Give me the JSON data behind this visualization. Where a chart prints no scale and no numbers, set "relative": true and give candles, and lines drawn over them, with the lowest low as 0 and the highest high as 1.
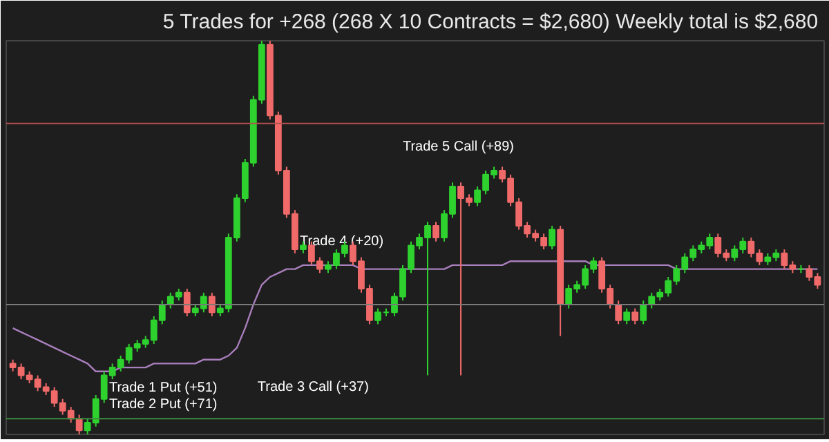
{
  "chart_data": {
    "type": "candlestick",
    "title": "5 Trades for +268 (268 X 10 Contracts = $2,680)  Weekly total is $2,680",
    "relative": true,
    "tick_labels": false,
    "grid": false,
    "categories": [
      null,
      null,
      null,
      null,
      null,
      null,
      null,
      null,
      null,
      null,
      null,
      null,
      null,
      null,
      null,
      null,
      null,
      null,
      null,
      null,
      null,
      null,
      null,
      null,
      null,
      null,
      null,
      null,
      null,
      null,
      null,
      null,
      null,
      null,
      null,
      null,
      null,
      null,
      null,
      null,
      null,
      null,
      null,
      null,
      null,
      null,
      null,
      null,
      null,
      null,
      null,
      null,
      null,
      null,
      null,
      null,
      null,
      null,
      null,
      null,
      null,
      null,
      null,
      null,
      null,
      null,
      null,
      null,
      null,
      null,
      null,
      null,
      null,
      null,
      null,
      null,
      null,
      null,
      null,
      null,
      null,
      null,
      null,
      null,
      null,
      null,
      null,
      null,
      null,
      null,
      null,
      null,
      null,
      null,
      null,
      null,
      null,
      null
    ],
    "ohlc": [
      [
        0.18,
        0.19,
        0.16,
        0.17
      ],
      [
        0.17,
        0.18,
        0.14,
        0.15
      ],
      [
        0.15,
        0.16,
        0.13,
        0.14
      ],
      [
        0.14,
        0.15,
        0.11,
        0.12
      ],
      [
        0.12,
        0.13,
        0.1,
        0.11
      ],
      [
        0.11,
        0.12,
        0.07,
        0.08
      ],
      [
        0.08,
        0.09,
        0.05,
        0.06
      ],
      [
        0.06,
        0.07,
        0.03,
        0.04
      ],
      [
        0.04,
        0.05,
        0,
        0.01
      ],
      [
        0.01,
        0.04,
        0,
        0.03
      ],
      [
        0.03,
        0.1,
        0.02,
        0.09
      ],
      [
        0.09,
        0.16,
        0.08,
        0.15
      ],
      [
        0.15,
        0.18,
        0.14,
        0.17
      ],
      [
        0.17,
        0.2,
        0.16,
        0.19
      ],
      [
        0.19,
        0.23,
        0.18,
        0.22
      ],
      [
        0.22,
        0.24,
        0.21,
        0.23
      ],
      [
        0.23,
        0.25,
        0.22,
        0.24
      ],
      [
        0.24,
        0.3,
        0.23,
        0.29
      ],
      [
        0.29,
        0.34,
        0.28,
        0.33
      ],
      [
        0.33,
        0.36,
        0.32,
        0.35
      ],
      [
        0.35,
        0.37,
        0.34,
        0.36
      ],
      [
        0.36,
        0.37,
        0.3,
        0.31
      ],
      [
        0.31,
        0.33,
        0.3,
        0.32
      ],
      [
        0.32,
        0.36,
        0.31,
        0.35
      ],
      [
        0.35,
        0.36,
        0.3,
        0.31
      ],
      [
        0.31,
        0.33,
        0.3,
        0.32
      ],
      [
        0.32,
        0.51,
        0.31,
        0.5
      ],
      [
        0.5,
        0.61,
        0.49,
        0.6
      ],
      [
        0.6,
        0.7,
        0.59,
        0.69
      ],
      [
        0.69,
        0.86,
        0.68,
        0.85
      ],
      [
        0.85,
        1,
        0.84,
        0.99
      ],
      [
        0.99,
        1,
        0.8,
        0.81
      ],
      [
        0.81,
        0.82,
        0.66,
        0.67
      ],
      [
        0.67,
        0.68,
        0.55,
        0.56
      ],
      [
        0.56,
        0.57,
        0.46,
        0.47
      ],
      [
        0.47,
        0.49,
        0.46,
        0.48
      ],
      [
        0.48,
        0.49,
        0.43,
        0.44
      ],
      [
        0.44,
        0.45,
        0.41,
        0.42
      ],
      [
        0.42,
        0.44,
        0.41,
        0.43
      ],
      [
        0.43,
        0.47,
        0.42,
        0.46
      ],
      [
        0.46,
        0.49,
        0.45,
        0.48
      ],
      [
        0.48,
        0.49,
        0.43,
        0.44
      ],
      [
        0.44,
        0.45,
        0.36,
        0.37
      ],
      [
        0.37,
        0.38,
        0.28,
        0.29
      ],
      [
        0.29,
        0.32,
        0.28,
        0.31
      ],
      [
        0.31,
        0.32,
        0.3,
        0.31
      ],
      [
        0.31,
        0.36,
        0.3,
        0.35
      ],
      [
        0.35,
        0.43,
        0.34,
        0.42
      ],
      [
        0.42,
        0.49,
        0.41,
        0.48
      ],
      [
        0.48,
        0.51,
        0.47,
        0.5
      ],
      [
        0.5,
        0.54,
        0.15,
        0.53
      ],
      [
        0.53,
        0.54,
        0.49,
        0.5
      ],
      [
        0.5,
        0.57,
        0.49,
        0.56
      ],
      [
        0.56,
        0.64,
        0.55,
        0.63
      ],
      [
        0.63,
        0.64,
        0.15,
        0.6
      ],
      [
        0.6,
        0.61,
        0.58,
        0.59
      ],
      [
        0.59,
        0.63,
        0.58,
        0.62
      ],
      [
        0.62,
        0.67,
        0.61,
        0.66
      ],
      [
        0.66,
        0.68,
        0.65,
        0.67
      ],
      [
        0.67,
        0.68,
        0.64,
        0.65
      ],
      [
        0.65,
        0.66,
        0.58,
        0.59
      ],
      [
        0.59,
        0.6,
        0.52,
        0.53
      ],
      [
        0.53,
        0.54,
        0.5,
        0.51
      ],
      [
        0.51,
        0.52,
        0.49,
        0.5
      ],
      [
        0.5,
        0.51,
        0.47,
        0.48
      ],
      [
        0.48,
        0.53,
        0.47,
        0.52
      ],
      [
        0.52,
        0.53,
        0.25,
        0.33
      ],
      [
        0.33,
        0.38,
        0.32,
        0.37
      ],
      [
        0.37,
        0.39,
        0.36,
        0.38
      ],
      [
        0.38,
        0.43,
        0.37,
        0.42
      ],
      [
        0.42,
        0.45,
        0.41,
        0.44
      ],
      [
        0.44,
        0.45,
        0.36,
        0.37
      ],
      [
        0.37,
        0.38,
        0.32,
        0.33
      ],
      [
        0.33,
        0.34,
        0.28,
        0.29
      ],
      [
        0.29,
        0.32,
        0.28,
        0.31
      ],
      [
        0.31,
        0.32,
        0.28,
        0.29
      ],
      [
        0.29,
        0.34,
        0.28,
        0.33
      ],
      [
        0.33,
        0.36,
        0.32,
        0.35
      ],
      [
        0.35,
        0.37,
        0.34,
        0.36
      ],
      [
        0.36,
        0.4,
        0.35,
        0.39
      ],
      [
        0.39,
        0.43,
        0.38,
        0.42
      ],
      [
        0.42,
        0.46,
        0.41,
        0.45
      ],
      [
        0.45,
        0.48,
        0.44,
        0.47
      ],
      [
        0.47,
        0.49,
        0.46,
        0.48
      ],
      [
        0.48,
        0.51,
        0.47,
        0.5
      ],
      [
        0.5,
        0.51,
        0.45,
        0.46
      ],
      [
        0.46,
        0.47,
        0.44,
        0.45
      ],
      [
        0.45,
        0.48,
        0.44,
        0.47
      ],
      [
        0.47,
        0.5,
        0.46,
        0.49
      ],
      [
        0.49,
        0.5,
        0.45,
        0.46
      ],
      [
        0.46,
        0.47,
        0.43,
        0.44
      ],
      [
        0.44,
        0.46,
        0.43,
        0.45
      ],
      [
        0.45,
        0.47,
        0.44,
        0.46
      ],
      [
        0.46,
        0.47,
        0.42,
        0.43
      ],
      [
        0.43,
        0.44,
        0.41,
        0.42
      ],
      [
        0.42,
        0.43,
        0.41,
        0.42
      ],
      [
        0.42,
        0.43,
        0.39,
        0.4
      ],
      [
        0.4,
        0.41,
        0.37,
        0.38
      ]
    ],
    "colors": [
      "#f06a6a",
      "#f06a6a",
      "#f06a6a",
      "#f06a6a",
      "#f06a6a",
      "#f06a6a",
      "#f06a6a",
      "#f06a6a",
      "#f06a6a",
      "#2ed12e",
      "#2ed12e",
      "#2ed12e",
      "#2ed12e",
      "#2ed12e",
      "#2ed12e",
      "#2ed12e",
      "#2ed12e",
      "#2ed12e",
      "#2ed12e",
      "#2ed12e",
      "#2ed12e",
      "#f06a6a",
      "#2ed12e",
      "#2ed12e",
      "#f06a6a",
      "#2ed12e",
      "#2ed12e",
      "#2ed12e",
      "#2ed12e",
      "#2ed12e",
      "#2ed12e",
      "#f06a6a",
      "#f06a6a",
      "#f06a6a",
      "#f06a6a",
      "#2ed12e",
      "#f06a6a",
      "#f06a6a",
      "#2ed12e",
      "#2ed12e",
      "#2ed12e",
      "#f06a6a",
      "#f06a6a",
      "#f06a6a",
      "#2ed12e",
      "#2ed12e",
      "#2ed12e",
      "#2ed12e",
      "#2ed12e",
      "#2ed12e",
      "#2ed12e",
      "#f06a6a",
      "#2ed12e",
      "#2ed12e",
      "#f06a6a",
      "#f06a6a",
      "#2ed12e",
      "#2ed12e",
      "#2ed12e",
      "#f06a6a",
      "#f06a6a",
      "#f06a6a",
      "#f06a6a",
      "#f06a6a",
      "#f06a6a",
      "#2ed12e",
      "#f06a6a",
      "#2ed12e",
      "#2ed12e",
      "#2ed12e",
      "#2ed12e",
      "#f06a6a",
      "#f06a6a",
      "#f06a6a",
      "#2ed12e",
      "#f06a6a",
      "#2ed12e",
      "#2ed12e",
      "#2ed12e",
      "#2ed12e",
      "#2ed12e",
      "#2ed12e",
      "#2ed12e",
      "#2ed12e",
      "#2ed12e",
      "#f06a6a",
      "#f06a6a",
      "#2ed12e",
      "#2ed12e",
      "#f06a6a",
      "#f06a6a",
      "#2ed12e",
      "#2ed12e",
      "#f06a6a",
      "#f06a6a",
      "#2ed12e",
      "#f06a6a",
      "#f06a6a"
    ],
    "series": [
      {
        "type": "line",
        "color": "#a97fbd",
        "values": [
          0.27,
          0.26,
          0.25,
          0.24,
          0.23,
          0.22,
          0.21,
          0.2,
          0.19,
          0.18,
          0.16,
          0.16,
          0.16,
          0.17,
          0.17,
          0.17,
          0.17,
          0.18,
          0.18,
          0.18,
          0.18,
          0.18,
          0.18,
          0.19,
          0.19,
          0.19,
          0.2,
          0.22,
          0.27,
          0.33,
          0.38,
          0.4,
          0.41,
          0.42,
          0.42,
          0.43,
          0.43,
          0.43,
          0.43,
          0.43,
          0.43,
          0.43,
          0.42,
          0.42,
          0.42,
          0.42,
          0.42,
          0.42,
          0.42,
          0.42,
          0.42,
          0.42,
          0.42,
          0.43,
          0.43,
          0.43,
          0.43,
          0.43,
          0.43,
          0.43,
          0.44,
          0.44,
          0.44,
          0.44,
          0.44,
          0.44,
          0.44,
          0.44,
          0.44,
          0.44,
          0.43,
          0.43,
          0.43,
          0.43,
          0.43,
          0.43,
          0.43,
          0.43,
          0.43,
          0.43,
          0.42,
          0.42,
          0.42,
          0.42,
          0.42,
          0.42,
          0.42,
          0.42,
          0.42,
          0.42,
          0.42,
          0.42,
          0.42,
          0.42,
          0.42,
          0.42,
          0.42,
          0.42
        ]
      }
    ],
    "ref_lines": [
      {
        "axis": "y",
        "value": 0.79,
        "color": "#b5524f"
      },
      {
        "axis": "y",
        "value": 0.33,
        "color": "#7a7a7a"
      },
      {
        "axis": "y",
        "value": 0.04,
        "color": "#3c8c3c"
      }
    ],
    "annotations": [
      "Trade 1 Put (+51)",
      "Trade 2 Put (+71)",
      "Trade 3 Call (+37)",
      "Trade 4 (+20)",
      "Trade 5 Call (+89)"
    ]
  }
}
